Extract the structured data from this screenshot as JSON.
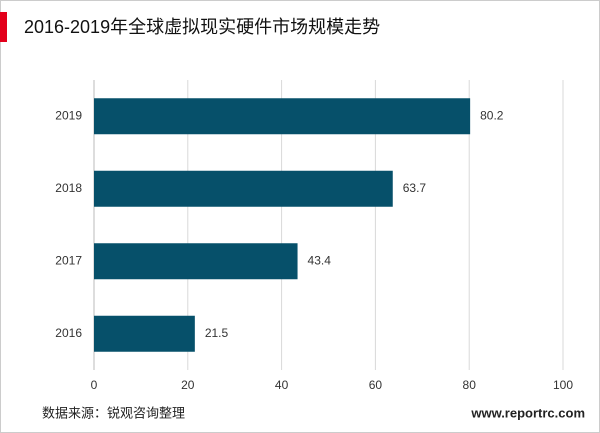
{
  "chart_data": {
    "type": "hbar",
    "title": "2016-2019年全球虚拟现实硬件市场规模走势",
    "categories": [
      "2016",
      "2017",
      "2018",
      "2019"
    ],
    "values": [
      21.5,
      43.4,
      63.7,
      80.2
    ],
    "color": "#06506a",
    "xlim": [
      0,
      100
    ],
    "xticks": [
      0,
      20,
      40,
      60,
      80,
      100
    ],
    "grid": true,
    "source": "数据来源：锐观咨询整理",
    "website": "www.reportrc.com"
  }
}
